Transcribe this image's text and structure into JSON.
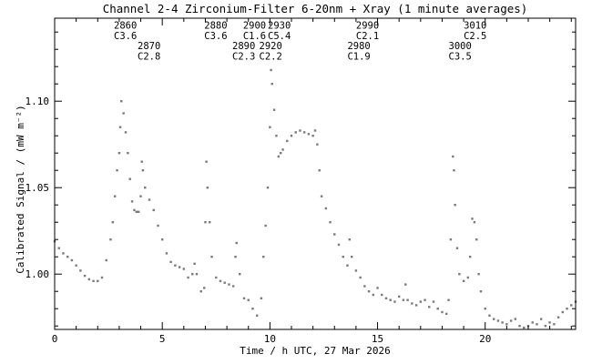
{
  "colors": {
    "axis": "#000000",
    "series": "#7a7a7a",
    "background": "#ffffff"
  },
  "chart_data": {
    "type": "scatter",
    "title": "Channel 2-4   Zirconium-Filter   6-20nm + Xray   (1 minute averages)",
    "xlabel": "Time / h UTC, 27 Mar 2026",
    "ylabel": "Calibrated Signal / (mW m⁻²)",
    "xlim": [
      0,
      24.2
    ],
    "ylim": [
      0.968,
      1.148
    ],
    "x_ticks": [
      0,
      5,
      10,
      15,
      20
    ],
    "x_tick_labels": [
      "0",
      "5",
      "10",
      "15",
      "20"
    ],
    "y_ticks": [
      1.0,
      1.05,
      1.1
    ],
    "y_tick_labels": [
      "1.00",
      "1.05",
      "1.10"
    ],
    "grid": false,
    "annotations": [
      {
        "text": "2860",
        "x": 2.75,
        "y": 1.142
      },
      {
        "text": "C3.6",
        "x": 2.75,
        "y": 1.136
      },
      {
        "text": "2870",
        "x": 3.85,
        "y": 1.13
      },
      {
        "text": "C2.8",
        "x": 3.85,
        "y": 1.124
      },
      {
        "text": "2880",
        "x": 6.95,
        "y": 1.142
      },
      {
        "text": "C3.6",
        "x": 6.95,
        "y": 1.136
      },
      {
        "text": "2890",
        "x": 8.25,
        "y": 1.13
      },
      {
        "text": "C2.3",
        "x": 8.25,
        "y": 1.124
      },
      {
        "text": "2900",
        "x": 8.75,
        "y": 1.142
      },
      {
        "text": "C1.6",
        "x": 8.75,
        "y": 1.136
      },
      {
        "text": "2930",
        "x": 9.9,
        "y": 1.142
      },
      {
        "text": "C5.4",
        "x": 9.9,
        "y": 1.136
      },
      {
        "text": "2920",
        "x": 9.5,
        "y": 1.13
      },
      {
        "text": "C2.2",
        "x": 9.5,
        "y": 1.124
      },
      {
        "text": "2990",
        "x": 14.0,
        "y": 1.142
      },
      {
        "text": "C2.1",
        "x": 14.0,
        "y": 1.136
      },
      {
        "text": "2980",
        "x": 13.6,
        "y": 1.13
      },
      {
        "text": "C1.9",
        "x": 13.6,
        "y": 1.124
      },
      {
        "text": "3000",
        "x": 18.3,
        "y": 1.13
      },
      {
        "text": "C3.5",
        "x": 18.3,
        "y": 1.124
      },
      {
        "text": "3010",
        "x": 19.0,
        "y": 1.142
      },
      {
        "text": "C2.5",
        "x": 19.0,
        "y": 1.136
      }
    ],
    "series": [
      {
        "values": [
          [
            0.0,
            1.019
          ],
          [
            0.2,
            1.015
          ],
          [
            0.4,
            1.012
          ],
          [
            0.6,
            1.01
          ],
          [
            0.8,
            1.008
          ],
          [
            1.0,
            1.005
          ],
          [
            1.2,
            1.002
          ],
          [
            1.4,
            0.999
          ],
          [
            1.6,
            0.997
          ],
          [
            1.8,
            0.996
          ],
          [
            2.0,
            0.996
          ],
          [
            2.2,
            0.998
          ],
          [
            2.4,
            1.008
          ],
          [
            2.6,
            1.02
          ],
          [
            2.7,
            1.03
          ],
          [
            2.8,
            1.045
          ],
          [
            2.9,
            1.06
          ],
          [
            3.0,
            1.07
          ],
          [
            3.05,
            1.085
          ],
          [
            3.1,
            1.1
          ],
          [
            3.2,
            1.093
          ],
          [
            3.3,
            1.082
          ],
          [
            3.4,
            1.07
          ],
          [
            3.5,
            1.055
          ],
          [
            3.6,
            1.042
          ],
          [
            3.7,
            1.037
          ],
          [
            3.8,
            1.036
          ],
          [
            3.9,
            1.036
          ],
          [
            4.0,
            1.045
          ],
          [
            4.05,
            1.065
          ],
          [
            4.1,
            1.06
          ],
          [
            4.2,
            1.05
          ],
          [
            4.4,
            1.043
          ],
          [
            4.6,
            1.037
          ],
          [
            4.8,
            1.028
          ],
          [
            5.0,
            1.02
          ],
          [
            5.2,
            1.012
          ],
          [
            5.4,
            1.007
          ],
          [
            5.6,
            1.005
          ],
          [
            5.8,
            1.004
          ],
          [
            6.0,
            1.003
          ],
          [
            6.2,
            0.998
          ],
          [
            6.4,
            1.0
          ],
          [
            6.5,
            1.006
          ],
          [
            6.6,
            1.0
          ],
          [
            6.8,
            0.99
          ],
          [
            6.95,
            0.992
          ],
          [
            7.0,
            1.03
          ],
          [
            7.05,
            1.065
          ],
          [
            7.1,
            1.05
          ],
          [
            7.2,
            1.03
          ],
          [
            7.3,
            1.01
          ],
          [
            7.5,
            0.998
          ],
          [
            7.7,
            0.996
          ],
          [
            7.9,
            0.995
          ],
          [
            8.1,
            0.994
          ],
          [
            8.3,
            0.993
          ],
          [
            8.4,
            1.01
          ],
          [
            8.45,
            1.018
          ],
          [
            8.6,
            1.0
          ],
          [
            8.8,
            0.986
          ],
          [
            9.0,
            0.985
          ],
          [
            9.2,
            0.98
          ],
          [
            9.4,
            0.976
          ],
          [
            9.6,
            0.986
          ],
          [
            9.7,
            1.01
          ],
          [
            9.8,
            1.028
          ],
          [
            9.9,
            1.05
          ],
          [
            10.0,
            1.085
          ],
          [
            10.05,
            1.118
          ],
          [
            10.1,
            1.11
          ],
          [
            10.2,
            1.095
          ],
          [
            10.3,
            1.08
          ],
          [
            10.4,
            1.068
          ],
          [
            10.5,
            1.07
          ],
          [
            10.6,
            1.072
          ],
          [
            10.8,
            1.077
          ],
          [
            11.0,
            1.08
          ],
          [
            11.2,
            1.082
          ],
          [
            11.4,
            1.083
          ],
          [
            11.6,
            1.082
          ],
          [
            11.8,
            1.081
          ],
          [
            12.0,
            1.08
          ],
          [
            12.1,
            1.083
          ],
          [
            12.2,
            1.075
          ],
          [
            12.3,
            1.06
          ],
          [
            12.4,
            1.045
          ],
          [
            12.6,
            1.038
          ],
          [
            12.8,
            1.03
          ],
          [
            13.0,
            1.023
          ],
          [
            13.2,
            1.017
          ],
          [
            13.4,
            1.01
          ],
          [
            13.6,
            1.005
          ],
          [
            13.7,
            1.02
          ],
          [
            13.8,
            1.01
          ],
          [
            14.0,
            1.002
          ],
          [
            14.2,
            0.998
          ],
          [
            14.4,
            0.993
          ],
          [
            14.6,
            0.99
          ],
          [
            14.8,
            0.988
          ],
          [
            15.0,
            0.992
          ],
          [
            15.2,
            0.988
          ],
          [
            15.4,
            0.986
          ],
          [
            15.6,
            0.985
          ],
          [
            15.8,
            0.984
          ],
          [
            16.0,
            0.987
          ],
          [
            16.2,
            0.985
          ],
          [
            16.3,
            0.994
          ],
          [
            16.4,
            0.985
          ],
          [
            16.6,
            0.983
          ],
          [
            16.8,
            0.982
          ],
          [
            17.0,
            0.984
          ],
          [
            17.2,
            0.985
          ],
          [
            17.4,
            0.981
          ],
          [
            17.6,
            0.984
          ],
          [
            17.8,
            0.98
          ],
          [
            18.0,
            0.978
          ],
          [
            18.2,
            0.977
          ],
          [
            18.3,
            0.985
          ],
          [
            18.4,
            1.02
          ],
          [
            18.5,
            1.068
          ],
          [
            18.55,
            1.06
          ],
          [
            18.6,
            1.04
          ],
          [
            18.7,
            1.015
          ],
          [
            18.8,
            1.0
          ],
          [
            19.0,
            0.996
          ],
          [
            19.2,
            0.998
          ],
          [
            19.3,
            1.01
          ],
          [
            19.4,
            1.032
          ],
          [
            19.5,
            1.03
          ],
          [
            19.6,
            1.02
          ],
          [
            19.7,
            1.0
          ],
          [
            19.8,
            0.99
          ],
          [
            20.0,
            0.98
          ],
          [
            20.2,
            0.976
          ],
          [
            20.4,
            0.974
          ],
          [
            20.6,
            0.973
          ],
          [
            20.8,
            0.972
          ],
          [
            21.0,
            0.971
          ],
          [
            21.2,
            0.973
          ],
          [
            21.4,
            0.974
          ],
          [
            21.6,
            0.97
          ],
          [
            21.8,
            0.969
          ],
          [
            22.0,
            0.97
          ],
          [
            22.2,
            0.972
          ],
          [
            22.4,
            0.971
          ],
          [
            22.6,
            0.974
          ],
          [
            22.8,
            0.97
          ],
          [
            23.0,
            0.972
          ],
          [
            23.2,
            0.971
          ],
          [
            23.4,
            0.975
          ],
          [
            23.6,
            0.978
          ],
          [
            23.8,
            0.98
          ],
          [
            24.0,
            0.982
          ],
          [
            24.2,
            0.984
          ]
        ]
      }
    ]
  }
}
